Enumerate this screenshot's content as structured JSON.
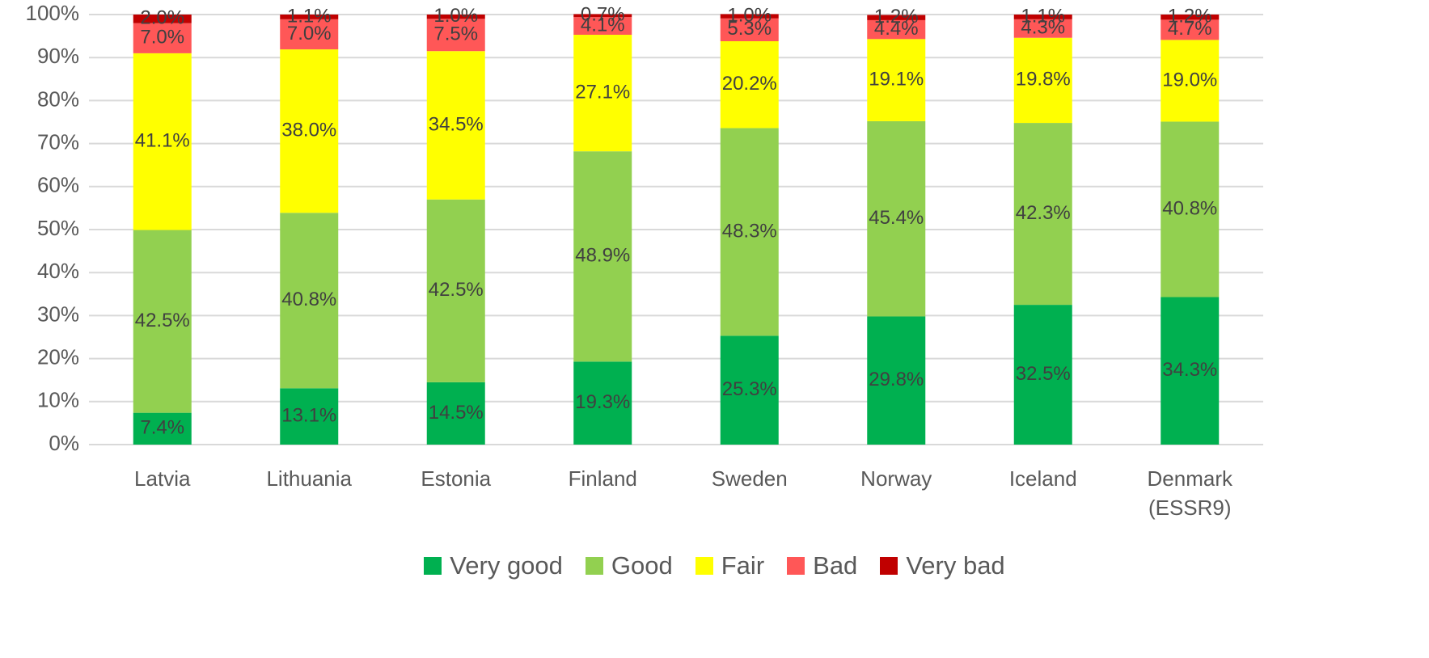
{
  "chart_data": {
    "type": "stacked_bar",
    "categories": [
      "Latvia",
      "Lithuania",
      "Estonia",
      "Finland",
      "Sweden",
      "Norway",
      "Iceland",
      "Denmark (ESSR9)"
    ],
    "series": [
      {
        "name": "Very good",
        "color": "#00b050",
        "values": [
          7.4,
          13.1,
          14.5,
          19.3,
          25.3,
          29.8,
          32.5,
          34.3
        ],
        "value_labels": [
          "7.4%",
          "13.1%",
          "14.5%",
          "19.3%",
          "25.3%",
          "29.8%",
          "32.5%",
          "34.3%"
        ]
      },
      {
        "name": "Good",
        "color": "#92d050",
        "values": [
          42.5,
          40.8,
          42.5,
          48.9,
          48.3,
          45.4,
          42.3,
          40.8
        ],
        "value_labels": [
          "42.5%",
          "40.8%",
          "42.5%",
          "48.9%",
          "48.3%",
          "45.4%",
          "42.3%",
          "40.8%"
        ]
      },
      {
        "name": "Fair",
        "color": "#ffff00",
        "values": [
          41.1,
          38.0,
          34.5,
          27.1,
          20.2,
          19.1,
          19.8,
          19.0
        ],
        "value_labels": [
          "41.1%",
          "38.0%",
          "34.5%",
          "27.1%",
          "20.2%",
          "19.1%",
          "19.8%",
          "19.0%"
        ]
      },
      {
        "name": "Bad",
        "color": "#ff5757",
        "values": [
          7.0,
          7.0,
          7.5,
          4.1,
          5.3,
          4.4,
          4.3,
          4.7
        ],
        "value_labels": [
          "7.0%",
          "7.0%",
          "7.5%",
          "4.1%",
          "5.3%",
          "4.4%",
          "4.3%",
          "4.7%"
        ]
      },
      {
        "name": "Very bad",
        "color": "#c00000",
        "values": [
          2.0,
          1.1,
          1.0,
          0.7,
          1.0,
          1.2,
          1.1,
          1.2
        ],
        "value_labels": [
          "2.0%",
          "1.1%",
          "1.0%",
          "0.7%",
          "1.0%",
          "1.2%",
          "1.1%",
          "1.2%"
        ]
      }
    ],
    "ylim": [
      0,
      100
    ],
    "yticks": [
      {
        "value": 0,
        "label": "0%"
      },
      {
        "value": 10,
        "label": "10%"
      },
      {
        "value": 20,
        "label": "20%"
      },
      {
        "value": 30,
        "label": "30%"
      },
      {
        "value": 40,
        "label": "40%"
      },
      {
        "value": 50,
        "label": "50%"
      },
      {
        "value": 60,
        "label": "60%"
      },
      {
        "value": 70,
        "label": "70%"
      },
      {
        "value": 80,
        "label": "80%"
      },
      {
        "value": 90,
        "label": "90%"
      },
      {
        "value": 100,
        "label": "100%"
      }
    ],
    "grid": true,
    "legend": "bottom"
  }
}
